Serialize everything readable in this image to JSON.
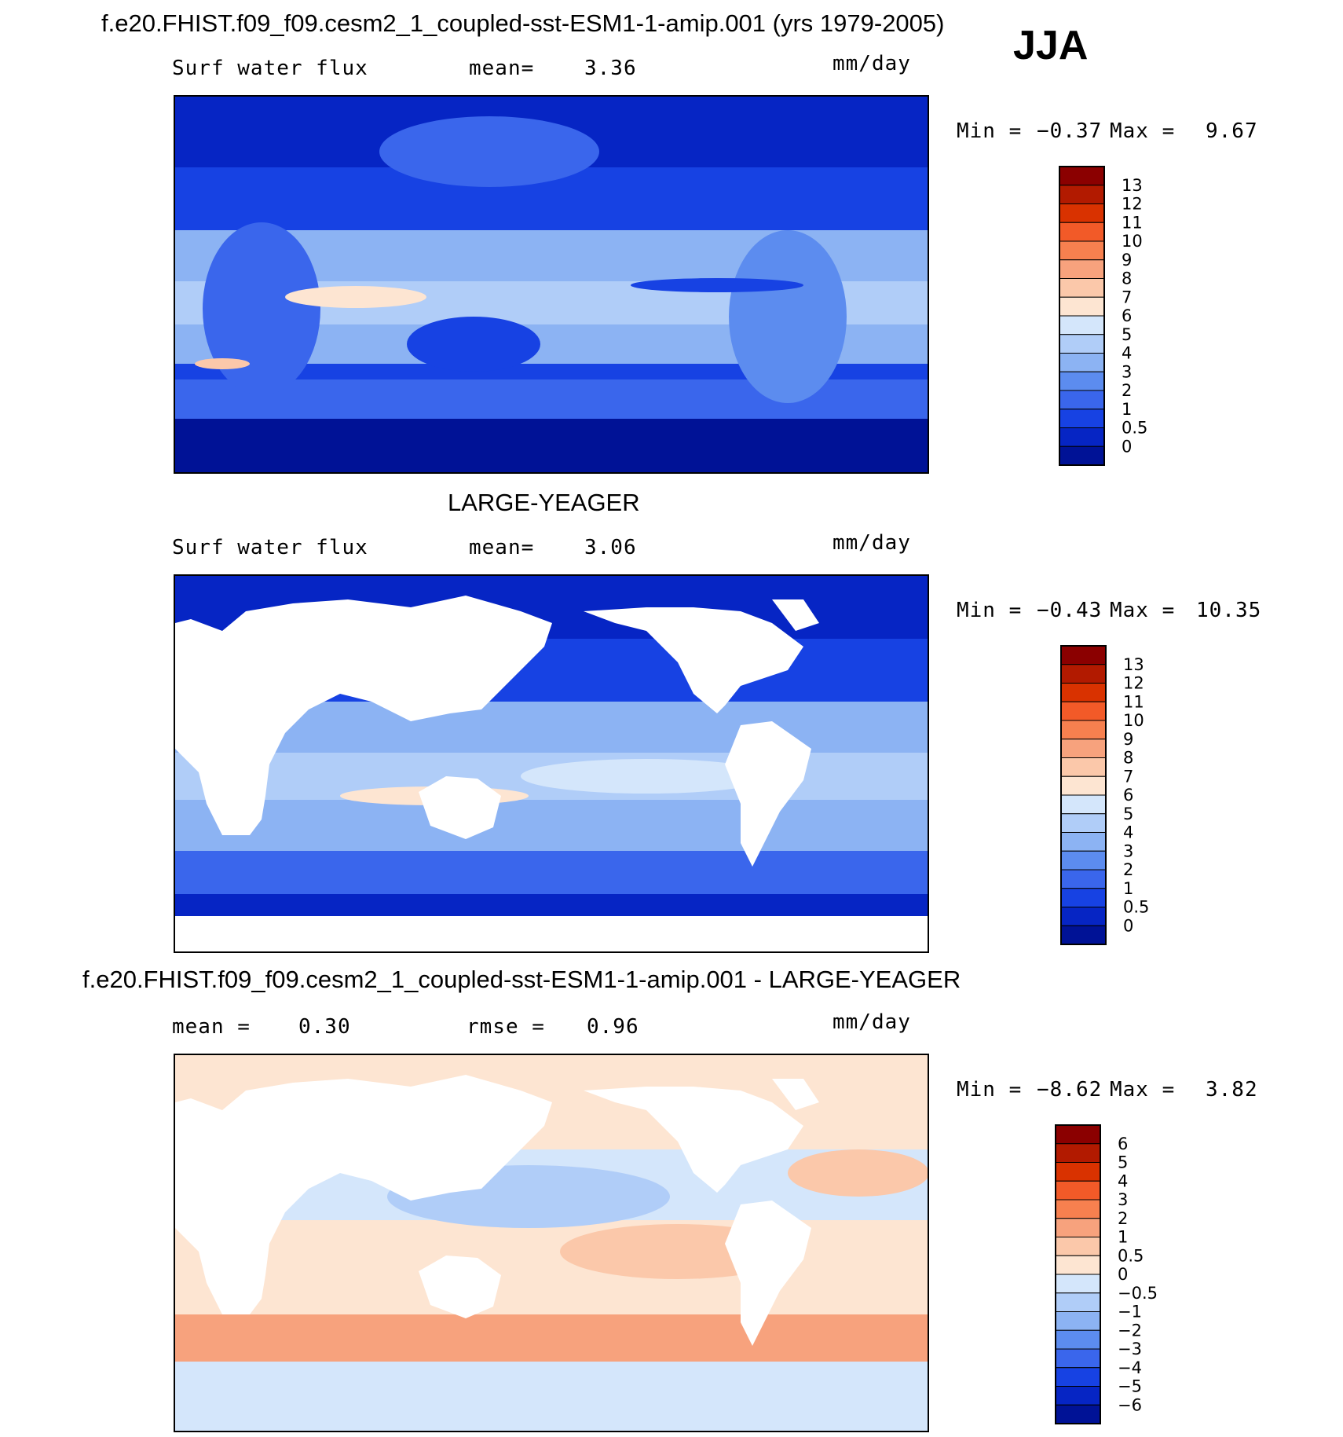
{
  "season": "JJA",
  "units_label": "mm/day",
  "panels": [
    {
      "title": "f.e20.FHIST.f09_f09.cesm2_1_coupled-sst-ESM1-1-amip.001 (yrs 1979-2005)",
      "variable": "Surf water flux",
      "stat1_label": "mean=",
      "stat1_value": "3.36",
      "units": "mm/day",
      "min_label": "Min =",
      "min_value": "−0.37",
      "max_label": "Max =",
      "max_value": "9.67"
    },
    {
      "title": "LARGE-YEAGER",
      "variable": "Surf water flux",
      "stat1_label": "mean=",
      "stat1_value": "3.06",
      "units": "mm/day",
      "min_label": "Min =",
      "min_value": "−0.43",
      "max_label": "Max =",
      "max_value": "10.35"
    },
    {
      "title": "f.e20.FHIST.f09_f09.cesm2_1_coupled-sst-ESM1-1-amip.001 - LARGE-YEAGER",
      "stat1_label": "mean =",
      "stat1_value": "0.30",
      "stat2_label": "rmse =",
      "stat2_value": "0.96",
      "units": "mm/day",
      "min_label": "Min =",
      "min_value": "−8.62",
      "max_label": "Max =",
      "max_value": "3.82"
    }
  ],
  "chart_data": [
    {
      "type": "heatmap",
      "title": "f.e20.FHIST.f09_f09.cesm2_1_coupled-sst-ESM1-1-amip.001 (yrs 1979-2005)",
      "subtitle": "Surf water flux",
      "units": "mm/day",
      "mean": 3.36,
      "min": -0.37,
      "max": 9.67,
      "colorbar_levels": [
        "13",
        "12",
        "11",
        "10",
        "9",
        "8",
        "7",
        "6",
        "5",
        "4",
        "3",
        "2",
        "1",
        "0.5",
        "0"
      ],
      "colorbar_colors": [
        "#8b0000",
        "#b21a00",
        "#d93200",
        "#f25a28",
        "#f7804f",
        "#f7a27d",
        "#fbc8aa",
        "#fde5d2",
        "#d4e6fb",
        "#b0cdf8",
        "#8cb3f3",
        "#5c8cef",
        "#3a66ec",
        "#1742e3",
        "#0625c4",
        "#001296"
      ]
    },
    {
      "type": "heatmap",
      "title": "LARGE-YEAGER",
      "subtitle": "Surf water flux",
      "units": "mm/day",
      "mean": 3.06,
      "min": -0.43,
      "max": 10.35,
      "colorbar_levels": [
        "13",
        "12",
        "11",
        "10",
        "9",
        "8",
        "7",
        "6",
        "5",
        "4",
        "3",
        "2",
        "1",
        "0.5",
        "0"
      ],
      "colorbar_colors": [
        "#8b0000",
        "#b21a00",
        "#d93200",
        "#f25a28",
        "#f7804f",
        "#f7a27d",
        "#fbc8aa",
        "#fde5d2",
        "#d4e6fb",
        "#b0cdf8",
        "#8cb3f3",
        "#5c8cef",
        "#3a66ec",
        "#1742e3",
        "#0625c4",
        "#001296"
      ]
    },
    {
      "type": "heatmap",
      "title": "f.e20.FHIST.f09_f09.cesm2_1_coupled-sst-ESM1-1-amip.001 - LARGE-YEAGER",
      "units": "mm/day",
      "mean": 0.3,
      "rmse": 0.96,
      "min": -8.62,
      "max": 3.82,
      "colorbar_levels": [
        "6",
        "5",
        "4",
        "3",
        "2",
        "1",
        "0.5",
        "0",
        "−0.5",
        "−1",
        "−2",
        "−3",
        "−4",
        "−5",
        "−6"
      ],
      "colorbar_colors": [
        "#8b0000",
        "#b21a00",
        "#d93200",
        "#f25a28",
        "#f7804f",
        "#f7a27d",
        "#fbc8aa",
        "#fde5d2",
        "#d4e6fb",
        "#b0cdf8",
        "#8cb3f3",
        "#5c8cef",
        "#3a66ec",
        "#1742e3",
        "#0625c4",
        "#001296"
      ]
    }
  ]
}
